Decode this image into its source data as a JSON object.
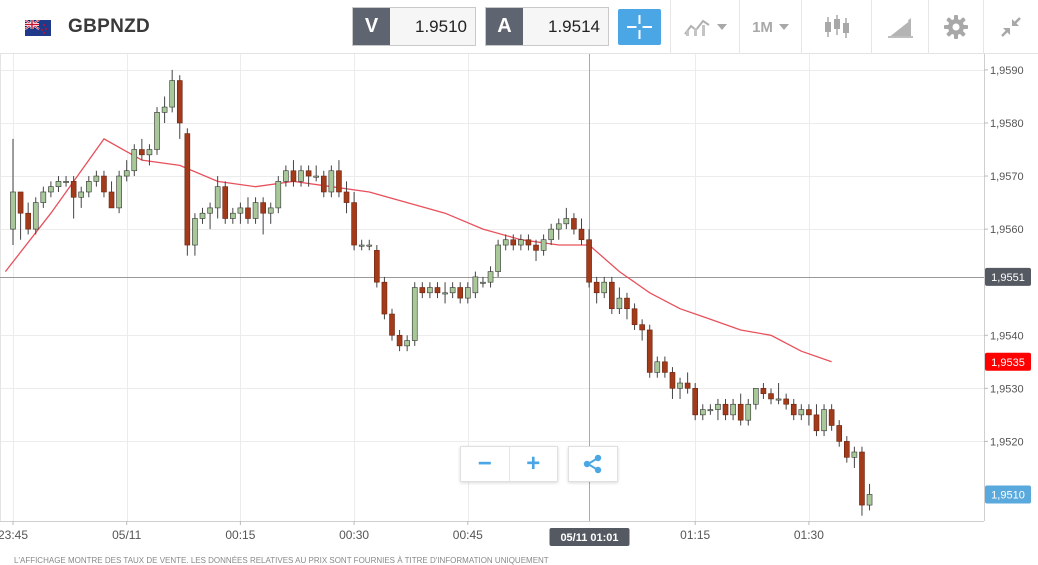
{
  "header": {
    "symbol": "GBPNZD",
    "sell_label": "V",
    "sell_price": "1.9510",
    "buy_label": "A",
    "buy_price": "1.9514",
    "timeframe": "1M",
    "icons": [
      "gb-nz-flag-icon",
      "crosshair-icon",
      "chart-type-icon",
      "candlestick-icon",
      "drawing-tools-icon",
      "gear-icon",
      "collapse-icon"
    ]
  },
  "controls": {
    "zoom_out": "−",
    "zoom_in": "+",
    "share_icon": "share-icon"
  },
  "footer": {
    "disclaimer": "L'AFFICHAGE MONTRE DES TAUX DE VENTE. LES DONNÉES RELATIVES AU PRIX SONT FOURNIES À TITRE D'INFORMATION UNIQUEMENT"
  },
  "chart_data": {
    "type": "candlestick",
    "title": "",
    "ylim": [
      1.9505,
      1.9593
    ],
    "y_ticks": [
      "1,9590",
      "1,9580",
      "1,9570",
      "1,9560",
      "1,9540",
      "1,9530",
      "1,9520"
    ],
    "x_ticks": [
      {
        "label": "23:45",
        "t": 0
      },
      {
        "label": "05/11",
        "t": 15
      },
      {
        "label": "00:15",
        "t": 30
      },
      {
        "label": "00:30",
        "t": 45
      },
      {
        "label": "00:45",
        "t": 60
      },
      {
        "label": "01:15",
        "t": 90
      },
      {
        "label": "01:30",
        "t": 105
      }
    ],
    "crosshair": {
      "t": 76,
      "price": 1.9551,
      "price_label": "1,9551",
      "time_label": "05/11 01:01"
    },
    "ma_label": {
      "value": 1.9535,
      "text": "1,9535"
    },
    "last_label": {
      "value": 1.951,
      "text": "1,9510"
    },
    "colors": {
      "up": "#a9c89a",
      "down": "#a33a1a",
      "ma": "#e8505b",
      "ma_label": "#ff0000",
      "last": "#5aa9dc",
      "crosshair_label": "#555962"
    },
    "candles": [
      [
        1.956,
        1.9577,
        1.9557,
        1.9567
      ],
      [
        1.9567,
        1.9567,
        1.9558,
        1.9563
      ],
      [
        1.9563,
        1.9565,
        1.9559,
        1.956
      ],
      [
        1.956,
        1.9566,
        1.9559,
        1.9565
      ],
      [
        1.9565,
        1.9568,
        1.9564,
        1.9567
      ],
      [
        1.9567,
        1.9569,
        1.9566,
        1.9568
      ],
      [
        1.9568,
        1.957,
        1.9567,
        1.9569
      ],
      [
        1.9569,
        1.957,
        1.9568,
        1.9569
      ],
      [
        1.9569,
        1.957,
        1.9562,
        1.9566
      ],
      [
        1.9566,
        1.9568,
        1.9564,
        1.9567
      ],
      [
        1.9567,
        1.957,
        1.9566,
        1.9569
      ],
      [
        1.9569,
        1.9571,
        1.9568,
        1.957
      ],
      [
        1.957,
        1.9571,
        1.9566,
        1.9567
      ],
      [
        1.9567,
        1.9569,
        1.9564,
        1.9564
      ],
      [
        1.9564,
        1.9571,
        1.9563,
        1.957
      ],
      [
        1.957,
        1.9573,
        1.9569,
        1.9571
      ],
      [
        1.9571,
        1.9576,
        1.957,
        1.9575
      ],
      [
        1.9575,
        1.9577,
        1.9573,
        1.9574
      ],
      [
        1.9574,
        1.9576,
        1.9572,
        1.9575
      ],
      [
        1.9575,
        1.9583,
        1.9574,
        1.9582
      ],
      [
        1.9582,
        1.9585,
        1.958,
        1.9583
      ],
      [
        1.9583,
        1.959,
        1.9582,
        1.9588
      ],
      [
        1.9588,
        1.9589,
        1.9577,
        1.958
      ],
      [
        1.9578,
        1.9579,
        1.9555,
        1.9557
      ],
      [
        1.9557,
        1.9563,
        1.9555,
        1.9562
      ],
      [
        1.9562,
        1.9564,
        1.9561,
        1.9563
      ],
      [
        1.9563,
        1.9565,
        1.956,
        1.9564
      ],
      [
        1.9564,
        1.957,
        1.9562,
        1.9568
      ],
      [
        1.9568,
        1.9569,
        1.9561,
        1.9562
      ],
      [
        1.9562,
        1.9564,
        1.9561,
        1.9563
      ],
      [
        1.9563,
        1.9565,
        1.9561,
        1.9564
      ],
      [
        1.9564,
        1.9566,
        1.9561,
        1.9562
      ],
      [
        1.9562,
        1.9566,
        1.9561,
        1.9565
      ],
      [
        1.9565,
        1.9566,
        1.9559,
        1.9563
      ],
      [
        1.9563,
        1.9565,
        1.9561,
        1.9564
      ],
      [
        1.9564,
        1.957,
        1.9563,
        1.9569
      ],
      [
        1.9569,
        1.9572,
        1.9568,
        1.9571
      ],
      [
        1.9571,
        1.9573,
        1.9568,
        1.9569
      ],
      [
        1.9569,
        1.9572,
        1.9568,
        1.9571
      ],
      [
        1.9571,
        1.9572,
        1.9568,
        1.957
      ],
      [
        1.957,
        1.9572,
        1.9569,
        1.957
      ],
      [
        1.957,
        1.9571,
        1.9566,
        1.9567
      ],
      [
        1.9567,
        1.9572,
        1.9566,
        1.9571
      ],
      [
        1.9571,
        1.9573,
        1.9566,
        1.9567
      ],
      [
        1.9567,
        1.9569,
        1.9563,
        1.9565
      ],
      [
        1.9565,
        1.9567,
        1.9556,
        1.9557
      ],
      [
        1.9557,
        1.9558,
        1.9556,
        1.9557
      ],
      [
        1.9557,
        1.9558,
        1.9556,
        1.9557
      ],
      [
        1.9556,
        1.9557,
        1.9549,
        1.955
      ],
      [
        1.955,
        1.9551,
        1.9543,
        1.9544
      ],
      [
        1.9544,
        1.9545,
        1.9539,
        1.954
      ],
      [
        1.954,
        1.9541,
        1.9537,
        1.9538
      ],
      [
        1.9538,
        1.954,
        1.9537,
        1.9539
      ],
      [
        1.9539,
        1.955,
        1.9538,
        1.9549
      ],
      [
        1.9549,
        1.955,
        1.9547,
        1.9548
      ],
      [
        1.9548,
        1.955,
        1.9547,
        1.9549
      ],
      [
        1.9549,
        1.955,
        1.9547,
        1.9548
      ],
      [
        1.9548,
        1.955,
        1.9546,
        1.9548
      ],
      [
        1.9548,
        1.955,
        1.9547,
        1.9549
      ],
      [
        1.9549,
        1.955,
        1.9546,
        1.9547
      ],
      [
        1.9547,
        1.955,
        1.9546,
        1.9549
      ],
      [
        1.9548,
        1.9552,
        1.9547,
        1.9551
      ],
      [
        1.955,
        1.9551,
        1.9549,
        1.955
      ],
      [
        1.955,
        1.9553,
        1.9549,
        1.9552
      ],
      [
        1.9552,
        1.9558,
        1.9551,
        1.9557
      ],
      [
        1.9557,
        1.9559,
        1.9556,
        1.9558
      ],
      [
        1.9558,
        1.9559,
        1.9556,
        1.9557
      ],
      [
        1.9557,
        1.9559,
        1.9556,
        1.9558
      ],
      [
        1.9558,
        1.9559,
        1.9556,
        1.9557
      ],
      [
        1.9557,
        1.9558,
        1.9554,
        1.9556
      ],
      [
        1.9556,
        1.9559,
        1.9555,
        1.9558
      ],
      [
        1.9558,
        1.9561,
        1.9557,
        1.956
      ],
      [
        1.956,
        1.9562,
        1.9558,
        1.9561
      ],
      [
        1.9561,
        1.9564,
        1.956,
        1.9562
      ],
      [
        1.9562,
        1.9563,
        1.9559,
        1.956
      ],
      [
        1.956,
        1.9562,
        1.9557,
        1.9558
      ],
      [
        1.9558,
        1.956,
        1.9549,
        1.955
      ],
      [
        1.955,
        1.9551,
        1.9546,
        1.9548
      ],
      [
        1.9548,
        1.9551,
        1.9547,
        1.955
      ],
      [
        1.955,
        1.9551,
        1.9544,
        1.9545
      ],
      [
        1.9545,
        1.9549,
        1.9544,
        1.9547
      ],
      [
        1.9547,
        1.9548,
        1.9543,
        1.9545
      ],
      [
        1.9545,
        1.9546,
        1.9541,
        1.9542
      ],
      [
        1.9542,
        1.9543,
        1.9539,
        1.9541
      ],
      [
        1.9541,
        1.9542,
        1.9532,
        1.9533
      ],
      [
        1.9533,
        1.9536,
        1.9532,
        1.9535
      ],
      [
        1.9535,
        1.9536,
        1.9532,
        1.9533
      ],
      [
        1.9533,
        1.9534,
        1.9528,
        1.953
      ],
      [
        1.953,
        1.9532,
        1.9528,
        1.9531
      ],
      [
        1.9531,
        1.9533,
        1.9529,
        1.953
      ],
      [
        1.953,
        1.9531,
        1.9524,
        1.9525
      ],
      [
        1.9525,
        1.9527,
        1.9524,
        1.9526
      ],
      [
        1.9526,
        1.9527,
        1.9525,
        1.9526
      ],
      [
        1.9526,
        1.9528,
        1.9524,
        1.9527
      ],
      [
        1.9527,
        1.9528,
        1.9524,
        1.9525
      ],
      [
        1.9525,
        1.9528,
        1.9524,
        1.9527
      ],
      [
        1.9527,
        1.9529,
        1.9523,
        1.9524
      ],
      [
        1.9524,
        1.9528,
        1.9523,
        1.9527
      ],
      [
        1.9527,
        1.953,
        1.9526,
        1.953
      ],
      [
        1.953,
        1.9531,
        1.9528,
        1.9529
      ],
      [
        1.9529,
        1.953,
        1.9527,
        1.9528
      ],
      [
        1.9528,
        1.9531,
        1.9527,
        1.9528
      ],
      [
        1.9528,
        1.9529,
        1.9526,
        1.9527
      ],
      [
        1.9527,
        1.9528,
        1.9524,
        1.9525
      ],
      [
        1.9525,
        1.9527,
        1.9524,
        1.9526
      ],
      [
        1.9526,
        1.9527,
        1.9523,
        1.9525
      ],
      [
        1.9525,
        1.9527,
        1.9521,
        1.9522
      ],
      [
        1.9522,
        1.9527,
        1.9521,
        1.9526
      ],
      [
        1.9526,
        1.9527,
        1.9522,
        1.9523
      ],
      [
        1.9523,
        1.9524,
        1.9519,
        1.952
      ],
      [
        1.952,
        1.9521,
        1.9516,
        1.9517
      ],
      [
        1.9517,
        1.9519,
        1.9515,
        1.9518
      ],
      [
        1.9518,
        1.9519,
        1.9506,
        1.9508
      ],
      [
        1.9508,
        1.9512,
        1.9507,
        1.951
      ]
    ],
    "ma": [
      [
        -1,
        1.9552
      ],
      [
        5,
        1.9563
      ],
      [
        12,
        1.9577
      ],
      [
        17,
        1.9573
      ],
      [
        22,
        1.9572
      ],
      [
        27,
        1.9569
      ],
      [
        32,
        1.9568
      ],
      [
        37,
        1.9569
      ],
      [
        42,
        1.9568
      ],
      [
        47,
        1.9567
      ],
      [
        52,
        1.9565
      ],
      [
        57,
        1.9563
      ],
      [
        62,
        1.956
      ],
      [
        67,
        1.9558
      ],
      [
        72,
        1.9557
      ],
      [
        76,
        1.9557
      ],
      [
        80,
        1.9552
      ],
      [
        84,
        1.9548
      ],
      [
        88,
        1.9545
      ],
      [
        92,
        1.9543
      ],
      [
        96,
        1.9541
      ],
      [
        100,
        1.954
      ],
      [
        104,
        1.9537
      ],
      [
        108,
        1.9535
      ]
    ]
  }
}
